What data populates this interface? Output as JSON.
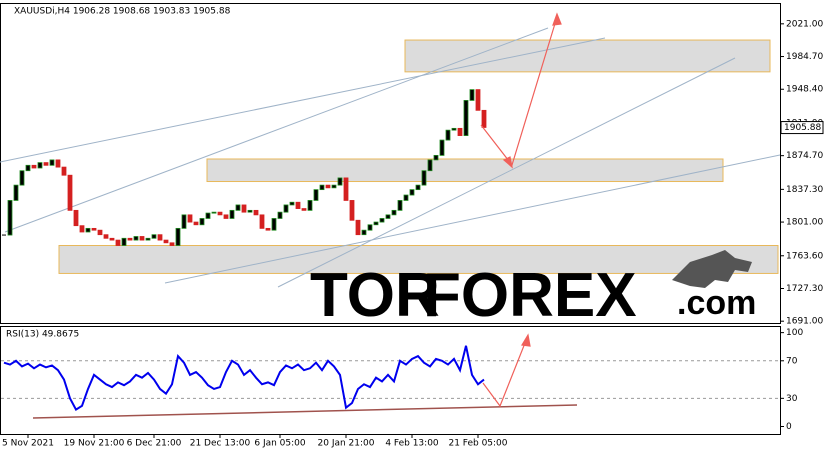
{
  "chart_data": [
    {
      "type": "candlestick",
      "header": "XAUUSDi,H4  1906.28 1908.68 1903.83 1905.88",
      "categories": [
        null,
        null,
        null,
        null,
        "5 Nov 2021",
        null,
        null,
        null,
        null,
        null,
        null,
        null,
        null,
        null,
        null,
        "19 Nov 21:00",
        null,
        null,
        null,
        null,
        null,
        null,
        null,
        null,
        null,
        "6 Dec 21:00",
        null,
        null,
        null,
        null,
        null,
        null,
        null,
        null,
        null,
        null,
        "21 Dec 13:00",
        null,
        null,
        null,
        null,
        null,
        null,
        null,
        null,
        null,
        "6 Jan 05:00",
        null,
        null,
        null,
        null,
        null,
        null,
        null,
        null,
        null,
        null,
        "20 Jan 21:00",
        null,
        null,
        null,
        null,
        null,
        null,
        null,
        null,
        null,
        null,
        "4 Feb 13:00",
        null,
        null,
        null,
        null,
        null,
        null,
        null,
        null,
        null,
        null,
        "21 Feb 05:00",
        null
      ],
      "values": [
        1786.6,
        1825,
        1842,
        1858,
        1864,
        1861,
        1867,
        1864,
        1870,
        1862,
        1853,
        1814,
        1797,
        1790,
        1794,
        1792,
        1787,
        1783,
        1781,
        1775,
        1783,
        1781,
        1785,
        1781,
        1783,
        1787,
        1781,
        1778,
        1775,
        1794,
        1809,
        1801,
        1798,
        1805,
        1811,
        1812,
        1809,
        1805,
        1814,
        1820,
        1812,
        1814,
        1809,
        1794,
        1792,
        1805,
        1812,
        1820,
        1823,
        1816,
        1814,
        1825,
        1837,
        1842,
        1839,
        1842,
        1850,
        1825,
        1803,
        1787,
        1792,
        1798,
        1801,
        1805,
        1809,
        1814,
        1825,
        1831,
        1837,
        1842,
        1858,
        1870,
        1875,
        1892,
        1903,
        1905,
        1897,
        1936,
        1948,
        1925,
        1906
      ],
      "up_color": "#1f8a1f",
      "down_color": "#d42020",
      "ylim": [
        1689,
        2043
      ],
      "yticks": [
        {
          "value": 2021,
          "label": "2021.00"
        },
        {
          "value": 1984.7,
          "label": "1984.70"
        },
        {
          "value": 1948.4,
          "label": "1948.40"
        },
        {
          "value": 1911,
          "label": "1911.00"
        },
        {
          "value": 1874.7,
          "label": "1874.70"
        },
        {
          "value": 1837.3,
          "label": "1837.30"
        },
        {
          "value": 1801,
          "label": "1801.00"
        },
        {
          "value": 1763.6,
          "label": "1763.60"
        },
        {
          "value": 1727.3,
          "label": "1727.30"
        },
        {
          "value": 1691,
          "label": "1691.00"
        }
      ],
      "last_price": 1905.88,
      "zones": [
        [
          2003,
          1967.7
        ],
        [
          1871,
          1846
        ],
        [
          1775,
          1744
        ]
      ]
    },
    {
      "type": "line",
      "header": "RSI(13) 49.8675",
      "color": "#0000ee",
      "values": [
        68,
        66,
        70,
        64,
        67,
        62,
        66,
        63,
        65,
        60,
        50,
        30,
        18,
        22,
        40,
        55,
        50,
        45,
        42,
        47,
        44,
        48,
        55,
        52,
        57,
        50,
        40,
        35,
        45,
        75,
        68,
        55,
        58,
        52,
        44,
        40,
        42,
        58,
        70,
        66,
        55,
        60,
        52,
        45,
        47,
        44,
        58,
        65,
        62,
        66,
        60,
        62,
        68,
        60,
        70,
        64,
        55,
        20,
        25,
        40,
        45,
        42,
        52,
        48,
        55,
        48,
        70,
        66,
        72,
        75,
        68,
        64,
        72,
        70,
        66,
        72,
        60,
        86,
        55,
        45,
        50
      ],
      "ylim": [
        -8,
        106
      ],
      "yticks": [
        100,
        70,
        30,
        0
      ],
      "levels": [
        70,
        30
      ]
    }
  ],
  "watermark": {
    "part1": "TOR",
    "part2": "FOREX",
    "part3": ".com"
  }
}
